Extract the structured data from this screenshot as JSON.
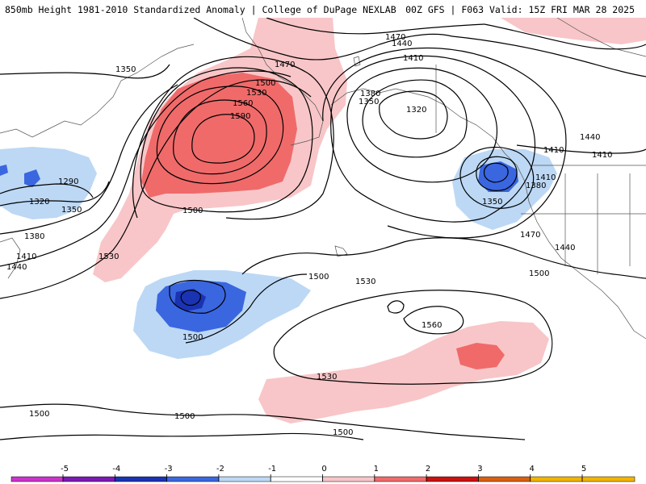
{
  "header": {
    "title": "850mb Height 1981-2010 Standardized Anomaly | College of DuPage NEXLAB",
    "run_info": "00Z GFS | F063 Valid: 15Z FRI MAR 28 2025"
  },
  "colors": {
    "anom_neg5": "#cc33cc",
    "anom_neg4": "#7a1ab3",
    "anom_neg3": "#1a33b3",
    "anom_neg2": "#3a66e0",
    "anom_neg1": "#bcd8f5",
    "anom_zero": "#ffffff",
    "anom_pos1": "#f8c6c8",
    "anom_pos2": "#f06a6a",
    "anom_pos3": "#cc1010",
    "anom_pos4": "#d96010",
    "anom_pos5": "#f2b400"
  },
  "contour_labels": [
    {
      "id": "c1350_nw",
      "text": "1350"
    },
    {
      "id": "c1290",
      "text": "1290"
    },
    {
      "id": "c1320_w",
      "text": "1320"
    },
    {
      "id": "c1350_w",
      "text": "1350"
    },
    {
      "id": "c1380_w",
      "text": "1380"
    },
    {
      "id": "c1410_w",
      "text": "1410"
    },
    {
      "id": "c1440_w",
      "text": "1440"
    },
    {
      "id": "c1530_w",
      "text": "1530"
    },
    {
      "id": "c1470_n",
      "text": "1470"
    },
    {
      "id": "c1500_n",
      "text": "1500"
    },
    {
      "id": "c1530_n",
      "text": "1530"
    },
    {
      "id": "c1560_n",
      "text": "1560"
    },
    {
      "id": "c1590",
      "text": "1590"
    },
    {
      "id": "c1500_mid",
      "text": "1500"
    },
    {
      "id": "c1470_ne",
      "text": "1470"
    },
    {
      "id": "c1440_ne",
      "text": "1440"
    },
    {
      "id": "c1410_ne",
      "text": "1410"
    },
    {
      "id": "c1380_e",
      "text": "1380"
    },
    {
      "id": "c1350_e",
      "text": "1350"
    },
    {
      "id": "c1320_e",
      "text": "1320"
    },
    {
      "id": "c1440_far_ne",
      "text": "1440"
    },
    {
      "id": "c1410_far_e",
      "text": "1410"
    },
    {
      "id": "c1410_coast",
      "text": "1410"
    },
    {
      "id": "c1410_coast2",
      "text": "1410"
    },
    {
      "id": "c1380_coast",
      "text": "1380"
    },
    {
      "id": "c1350_low",
      "text": "1350"
    },
    {
      "id": "c1470_coast",
      "text": "1470"
    },
    {
      "id": "c1440_coast",
      "text": "1440"
    },
    {
      "id": "c1500_coast",
      "text": "1500"
    },
    {
      "id": "c1500_cent",
      "text": "1500"
    },
    {
      "id": "c1530_cent",
      "text": "1530"
    },
    {
      "id": "c1500_low",
      "text": "1500"
    },
    {
      "id": "c1560_high",
      "text": "1560"
    },
    {
      "id": "c1530_s",
      "text": "1530"
    },
    {
      "id": "c1500_sw",
      "text": "1500"
    },
    {
      "id": "c1500_s",
      "text": "1500"
    },
    {
      "id": "c1500_se",
      "text": "1500"
    }
  ],
  "colorbar": {
    "ticks": [
      "-5",
      "-4",
      "-3",
      "-2",
      "-1",
      "0",
      "1",
      "2",
      "3",
      "4",
      "5"
    ]
  }
}
